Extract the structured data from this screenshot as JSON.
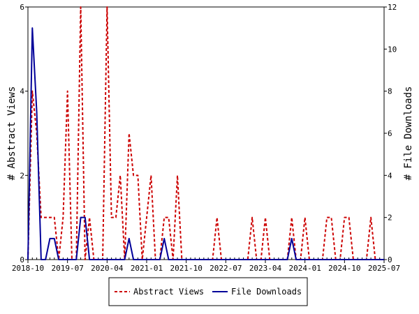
{
  "chart_data": {
    "type": "line",
    "title": "",
    "xlabel": "",
    "ylabel_left": "# Abstract Views",
    "ylabel_right": "# File Downloads",
    "ylim_left": [
      0,
      6
    ],
    "ylim_right": [
      0,
      12
    ],
    "xlim": [
      "2018-10",
      "2025-07"
    ],
    "x_tick_labels": [
      "2018-10",
      "2019-07",
      "2020-04",
      "2021-01",
      "2021-10",
      "2022-07",
      "2023-04",
      "2024-01",
      "2024-10",
      "2025-07"
    ],
    "y_left_tick_labels": [
      "0",
      "2",
      "4",
      "6"
    ],
    "y_right_tick_labels": [
      "0",
      "2",
      "4",
      "6",
      "8",
      "10",
      "12"
    ],
    "grid": false,
    "legend_position": "bottom",
    "series": [
      {
        "name": "Abstract Views",
        "axis": "left",
        "color": "#cc0000",
        "style": "dashed",
        "points": [
          [
            "2018-10",
            0
          ],
          [
            "2018-11",
            4
          ],
          [
            "2018-12",
            3
          ],
          [
            "2019-01",
            1
          ],
          [
            "2019-02",
            1
          ],
          [
            "2019-03",
            1
          ],
          [
            "2019-04",
            1
          ],
          [
            "2019-05",
            0
          ],
          [
            "2019-06",
            1
          ],
          [
            "2019-07",
            4
          ],
          [
            "2019-08",
            0
          ],
          [
            "2019-09",
            0
          ],
          [
            "2019-10",
            6
          ],
          [
            "2019-11",
            0
          ],
          [
            "2019-12",
            1
          ],
          [
            "2020-01",
            0
          ],
          [
            "2020-02",
            0
          ],
          [
            "2020-03",
            0
          ],
          [
            "2020-04",
            6
          ],
          [
            "2020-05",
            1
          ],
          [
            "2020-06",
            1
          ],
          [
            "2020-07",
            2
          ],
          [
            "2020-08",
            0
          ],
          [
            "2020-09",
            3
          ],
          [
            "2020-10",
            2
          ],
          [
            "2020-11",
            2
          ],
          [
            "2020-12",
            0
          ],
          [
            "2021-01",
            1
          ],
          [
            "2021-02",
            2
          ],
          [
            "2021-03",
            0
          ],
          [
            "2021-04",
            0
          ],
          [
            "2021-05",
            1
          ],
          [
            "2021-06",
            1
          ],
          [
            "2021-07",
            0
          ],
          [
            "2021-08",
            2
          ],
          [
            "2021-09",
            0
          ],
          [
            "2021-10",
            0
          ],
          [
            "2021-11",
            0
          ],
          [
            "2021-12",
            0
          ],
          [
            "2022-01",
            0
          ],
          [
            "2022-02",
            0
          ],
          [
            "2022-03",
            0
          ],
          [
            "2022-04",
            0
          ],
          [
            "2022-05",
            1
          ],
          [
            "2022-06",
            0
          ],
          [
            "2022-07",
            0
          ],
          [
            "2022-08",
            0
          ],
          [
            "2022-09",
            0
          ],
          [
            "2022-10",
            0
          ],
          [
            "2022-11",
            0
          ],
          [
            "2022-12",
            0
          ],
          [
            "2023-01",
            1
          ],
          [
            "2023-02",
            0
          ],
          [
            "2023-03",
            0
          ],
          [
            "2023-04",
            1
          ],
          [
            "2023-05",
            0
          ],
          [
            "2023-06",
            0
          ],
          [
            "2023-07",
            0
          ],
          [
            "2023-08",
            0
          ],
          [
            "2023-09",
            0
          ],
          [
            "2023-10",
            1
          ],
          [
            "2023-11",
            0
          ],
          [
            "2023-12",
            0
          ],
          [
            "2024-01",
            1
          ],
          [
            "2024-02",
            0
          ],
          [
            "2024-03",
            0
          ],
          [
            "2024-04",
            0
          ],
          [
            "2024-05",
            0
          ],
          [
            "2024-06",
            1
          ],
          [
            "2024-07",
            1
          ],
          [
            "2024-08",
            0
          ],
          [
            "2024-09",
            0
          ],
          [
            "2024-10",
            1
          ],
          [
            "2024-11",
            1
          ],
          [
            "2024-12",
            0
          ],
          [
            "2025-01",
            0
          ],
          [
            "2025-02",
            0
          ],
          [
            "2025-03",
            0
          ],
          [
            "2025-04",
            1
          ],
          [
            "2025-05",
            0
          ],
          [
            "2025-06",
            0
          ],
          [
            "2025-07",
            0
          ]
        ]
      },
      {
        "name": "File Downloads",
        "axis": "right",
        "color": "#000099",
        "style": "solid",
        "points": [
          [
            "2018-10",
            0
          ],
          [
            "2018-11",
            11
          ],
          [
            "2018-12",
            7
          ],
          [
            "2019-01",
            0
          ],
          [
            "2019-02",
            0
          ],
          [
            "2019-03",
            1
          ],
          [
            "2019-04",
            1
          ],
          [
            "2019-05",
            0
          ],
          [
            "2019-06",
            0
          ],
          [
            "2019-07",
            0
          ],
          [
            "2019-08",
            0
          ],
          [
            "2019-09",
            0
          ],
          [
            "2019-10",
            2
          ],
          [
            "2019-11",
            2
          ],
          [
            "2019-12",
            0
          ],
          [
            "2020-01",
            0
          ],
          [
            "2020-02",
            0
          ],
          [
            "2020-03",
            0
          ],
          [
            "2020-04",
            0
          ],
          [
            "2020-05",
            0
          ],
          [
            "2020-06",
            0
          ],
          [
            "2020-07",
            0
          ],
          [
            "2020-08",
            0
          ],
          [
            "2020-09",
            1
          ],
          [
            "2020-10",
            0
          ],
          [
            "2020-11",
            0
          ],
          [
            "2020-12",
            0
          ],
          [
            "2021-01",
            0
          ],
          [
            "2021-02",
            0
          ],
          [
            "2021-03",
            0
          ],
          [
            "2021-04",
            0
          ],
          [
            "2021-05",
            1
          ],
          [
            "2021-06",
            0
          ],
          [
            "2021-07",
            0
          ],
          [
            "2021-08",
            0
          ],
          [
            "2021-09",
            0
          ],
          [
            "2021-10",
            0
          ],
          [
            "2021-11",
            0
          ],
          [
            "2021-12",
            0
          ],
          [
            "2022-01",
            0
          ],
          [
            "2022-02",
            0
          ],
          [
            "2022-03",
            0
          ],
          [
            "2022-04",
            0
          ],
          [
            "2022-05",
            0
          ],
          [
            "2022-06",
            0
          ],
          [
            "2022-07",
            0
          ],
          [
            "2022-08",
            0
          ],
          [
            "2022-09",
            0
          ],
          [
            "2022-10",
            0
          ],
          [
            "2022-11",
            0
          ],
          [
            "2022-12",
            0
          ],
          [
            "2023-01",
            0
          ],
          [
            "2023-02",
            0
          ],
          [
            "2023-03",
            0
          ],
          [
            "2023-04",
            0
          ],
          [
            "2023-05",
            0
          ],
          [
            "2023-06",
            0
          ],
          [
            "2023-07",
            0
          ],
          [
            "2023-08",
            0
          ],
          [
            "2023-09",
            0
          ],
          [
            "2023-10",
            1
          ],
          [
            "2023-11",
            0
          ],
          [
            "2023-12",
            0
          ],
          [
            "2024-01",
            0
          ],
          [
            "2024-02",
            0
          ],
          [
            "2024-03",
            0
          ],
          [
            "2024-04",
            0
          ],
          [
            "2024-05",
            0
          ],
          [
            "2024-06",
            0
          ],
          [
            "2024-07",
            0
          ],
          [
            "2024-08",
            0
          ],
          [
            "2024-09",
            0
          ],
          [
            "2024-10",
            0
          ],
          [
            "2024-11",
            0
          ],
          [
            "2024-12",
            0
          ],
          [
            "2025-01",
            0
          ],
          [
            "2025-02",
            0
          ],
          [
            "2025-03",
            0
          ],
          [
            "2025-04",
            0
          ],
          [
            "2025-05",
            0
          ],
          [
            "2025-06",
            0
          ],
          [
            "2025-07",
            0
          ]
        ]
      }
    ]
  }
}
